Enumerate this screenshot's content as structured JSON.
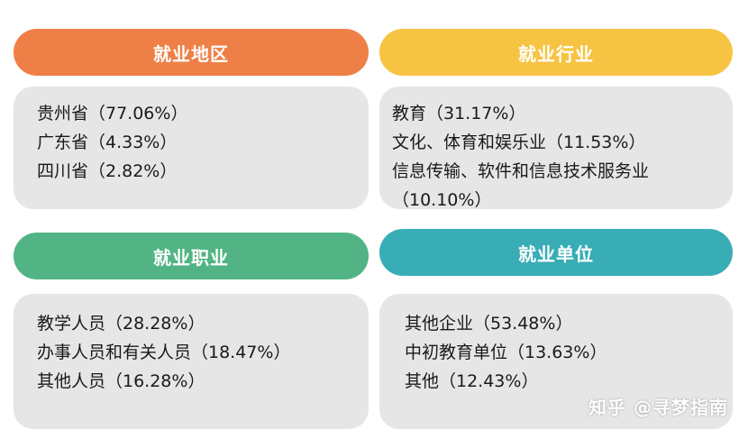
{
  "colors": {
    "region": "#ee8047",
    "industry": "#f7c342",
    "occupation": "#52b484",
    "employer": "#38adb5",
    "box_bg": "#e6e6e6"
  },
  "region": {
    "title": "就业地区",
    "items": [
      "贵州省（77.06%）",
      "广东省（4.33%）",
      "四川省（2.82%）"
    ]
  },
  "industry": {
    "title": "就业行业",
    "items": [
      "教育（31.17%）",
      "文化、体育和娱乐业（11.53%）",
      "信息传输、软件和信息技术服务业",
      "（10.10%）"
    ]
  },
  "occupation": {
    "title": "就业职业",
    "items": [
      "教学人员（28.28%）",
      "办事人员和有关人员（18.47%）",
      "其他人员（16.28%）"
    ]
  },
  "employer": {
    "title": "就业单位",
    "items": [
      "其他企业（53.48%）",
      "中初教育单位（13.63%）",
      "其他（12.43%）"
    ]
  },
  "watermark": "知乎 @寻梦指南"
}
